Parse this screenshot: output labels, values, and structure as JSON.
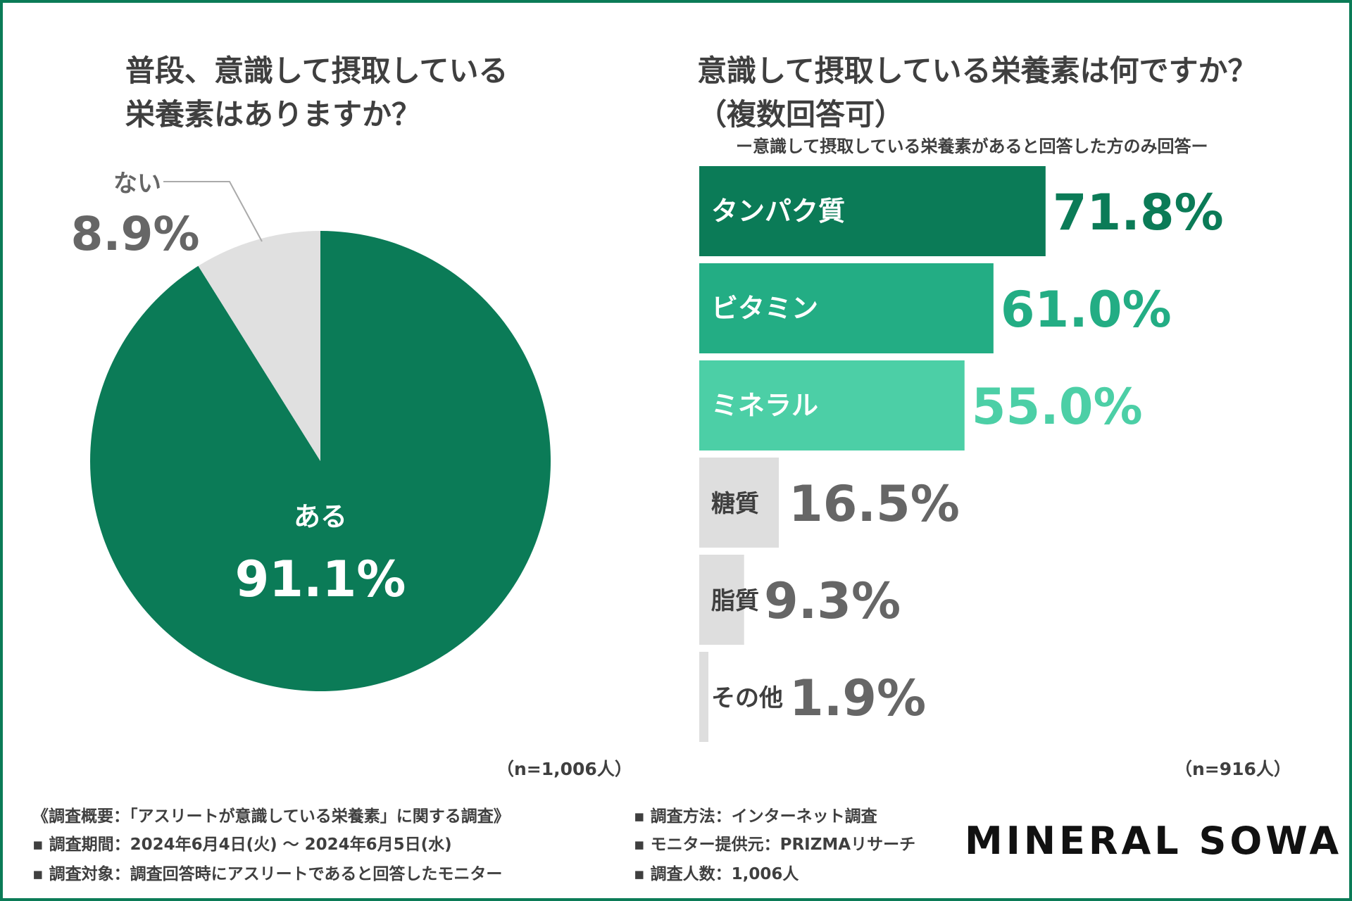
{
  "colors": {
    "border": "#0b7b57",
    "pie_yes": "#0b7b57",
    "pie_no": "#e0e0e0",
    "bar_1": "#0b7b57",
    "bar_2": "#23ad84",
    "bar_3": "#4ccfa6",
    "bar_other": "#dedede",
    "text_dark": "#3f3f3f",
    "text_gray": "#666666"
  },
  "left_chart": {
    "title_line1": "普段、意識して摂取している",
    "title_line2": "栄養素はありますか？",
    "n_label": "（n=1,006人）"
  },
  "right_chart": {
    "title_line1": "意識して摂取している栄養素は何ですか？",
    "title_line2": "（複数回答可）",
    "subtitle": "ー意識して摂取している栄養素があると回答した方のみ回答ー",
    "n_label": "（n=916人）"
  },
  "chart_data": [
    {
      "type": "pie",
      "title": "普段、意識して摂取している栄養素はありますか？",
      "slices": [
        {
          "label": "ある",
          "value": 91.1,
          "value_label": "91.1%",
          "color": "#0b7b57"
        },
        {
          "label": "ない",
          "value": 8.9,
          "value_label": "8.9%",
          "color": "#e0e0e0"
        }
      ]
    },
    {
      "type": "bar",
      "orientation": "horizontal",
      "title": "意識して摂取している栄養素は何ですか？（複数回答可）",
      "categories": [
        "タンパク質",
        "ビタミン",
        "ミネラル",
        "糖質",
        "脂質",
        "その他"
      ],
      "values": [
        71.8,
        61.0,
        55.0,
        16.5,
        9.3,
        1.9
      ],
      "value_labels": [
        "71.8%",
        "61.0%",
        "55.0%",
        "16.5%",
        "9.3%",
        "1.9%"
      ],
      "bar_colors": [
        "#0b7b57",
        "#23ad84",
        "#4ccfa6",
        "#dedede",
        "#dedede",
        "#dedede"
      ],
      "label_colors": [
        "#0b7b57",
        "#23ad84",
        "#4ccfa6",
        "#666666",
        "#666666",
        "#666666"
      ],
      "xlim": [
        0,
        100
      ]
    }
  ],
  "footer": {
    "line1": "《調査概要：「アスリートが意識している栄養素」に関する調査》",
    "line2": "▪ 調査期間：2024年6月4日(火) ～ 2024年6月5日(水)",
    "line3": "▪ 調査対象：調査回答時にアスリートであると回答したモニター",
    "line4": "▪ 調査方法：インターネット調査",
    "line5": "▪ モニター提供元：PRIZMAリサーチ",
    "line6": "▪ 調査人数：1,006人"
  },
  "logo": "MINERAL SOWA"
}
